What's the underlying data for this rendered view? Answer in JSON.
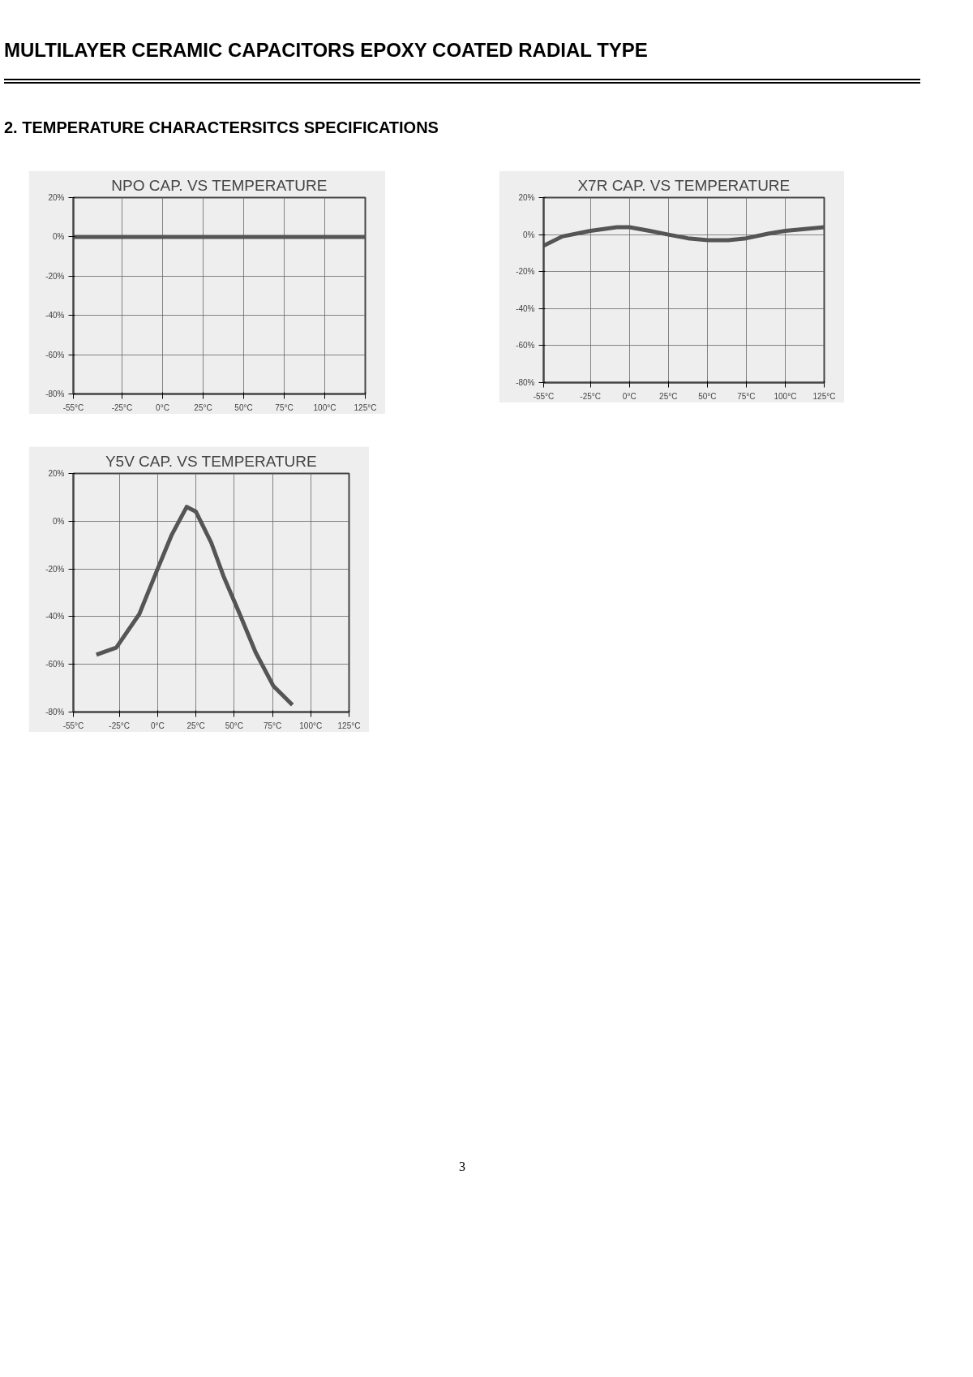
{
  "chart_data": [
    {
      "type": "other",
      "title": "MULTILAYER CERAMIC CAPACITORS EPOXY COATED RADIAL TYPE",
      "annotations": [
        "2.  TEMPERATURE CHARACTERSITCS SPECIFICATIONS",
        "3"
      ]
    },
    {
      "type": "line",
      "title": "NPO CAP. VS TEMPERATURE",
      "x": [
        -55,
        125
      ],
      "values": [
        0,
        0
      ],
      "color": "#555555",
      "xlim": [
        -55,
        125
      ],
      "ylim": [
        -80,
        20
      ],
      "xticks": [
        {
          "value": -55,
          "label": "-55°C"
        },
        {
          "value": -25,
          "label": "-25°C"
        },
        {
          "value": 0,
          "label": "0°C"
        },
        {
          "value": 25,
          "label": "25°C"
        },
        {
          "value": 50,
          "label": "50°C"
        },
        {
          "value": 75,
          "label": "75°C"
        },
        {
          "value": 100,
          "label": "100°C"
        },
        {
          "value": 125,
          "label": "125°C"
        }
      ],
      "yticks": [
        {
          "value": -80,
          "label": "-80%"
        },
        {
          "value": -60,
          "label": "-60%"
        },
        {
          "value": -40,
          "label": "-40%"
        },
        {
          "value": -20,
          "label": "-20%"
        },
        {
          "value": 0,
          "label": "0%"
        },
        {
          "value": 20,
          "label": "20%"
        }
      ],
      "grid": true
    },
    {
      "type": "line",
      "title": "X7R CAP. VS TEMPERATURE",
      "x": [
        -55,
        -43,
        -25,
        -8,
        0,
        13,
        25,
        37.5,
        50.5,
        63.5,
        75,
        89,
        100,
        125
      ],
      "values": [
        -6,
        -1,
        2,
        4,
        4,
        2,
        0,
        -2,
        -3,
        -3,
        -2,
        0.5,
        2,
        4
      ],
      "color": "#555555",
      "xlim": [
        -55,
        125
      ],
      "ylim": [
        -80,
        20
      ],
      "xticks": [
        {
          "value": -55,
          "label": "-55°C"
        },
        {
          "value": -25,
          "label": "-25°C"
        },
        {
          "value": 0,
          "label": "0°C"
        },
        {
          "value": 25,
          "label": "25°C"
        },
        {
          "value": 50,
          "label": "50°C"
        },
        {
          "value": 75,
          "label": "75°C"
        },
        {
          "value": 100,
          "label": "100°C"
        },
        {
          "value": 125,
          "label": "125°C"
        }
      ],
      "yticks": [
        {
          "value": -80,
          "label": "-80%"
        },
        {
          "value": -60,
          "label": "-60%"
        },
        {
          "value": -40,
          "label": "-40%"
        },
        {
          "value": -20,
          "label": "-20%"
        },
        {
          "value": 0,
          "label": "0%"
        },
        {
          "value": 20,
          "label": "20%"
        }
      ],
      "grid": true
    },
    {
      "type": "line",
      "title": "Y5V CAP. VS TEMPERATURE",
      "x": [
        -40,
        -27,
        -12,
        0,
        9,
        19,
        25,
        35,
        43,
        53,
        64,
        75.5,
        88
      ],
      "values": [
        -56,
        -53,
        -39,
        -20,
        -6,
        6,
        4,
        -9,
        -23,
        -38,
        -55,
        -69,
        -77
      ],
      "color": "#555555",
      "xlim": [
        -55,
        125
      ],
      "ylim": [
        -80,
        20
      ],
      "xticks": [
        {
          "value": -55,
          "label": "-55°C"
        },
        {
          "value": -25,
          "label": "-25°C"
        },
        {
          "value": 0,
          "label": "0°C"
        },
        {
          "value": 25,
          "label": "25°C"
        },
        {
          "value": 50,
          "label": "50°C"
        },
        {
          "value": 75,
          "label": "75°C"
        },
        {
          "value": 100,
          "label": "100°C"
        },
        {
          "value": 125,
          "label": "125°C"
        }
      ],
      "yticks": [
        {
          "value": -80,
          "label": "-80%"
        },
        {
          "value": -60,
          "label": "-60%"
        },
        {
          "value": -40,
          "label": "-40%"
        },
        {
          "value": -20,
          "label": "-20%"
        },
        {
          "value": 0,
          "label": "0%"
        },
        {
          "value": 20,
          "label": "20%"
        }
      ],
      "grid": true
    }
  ]
}
